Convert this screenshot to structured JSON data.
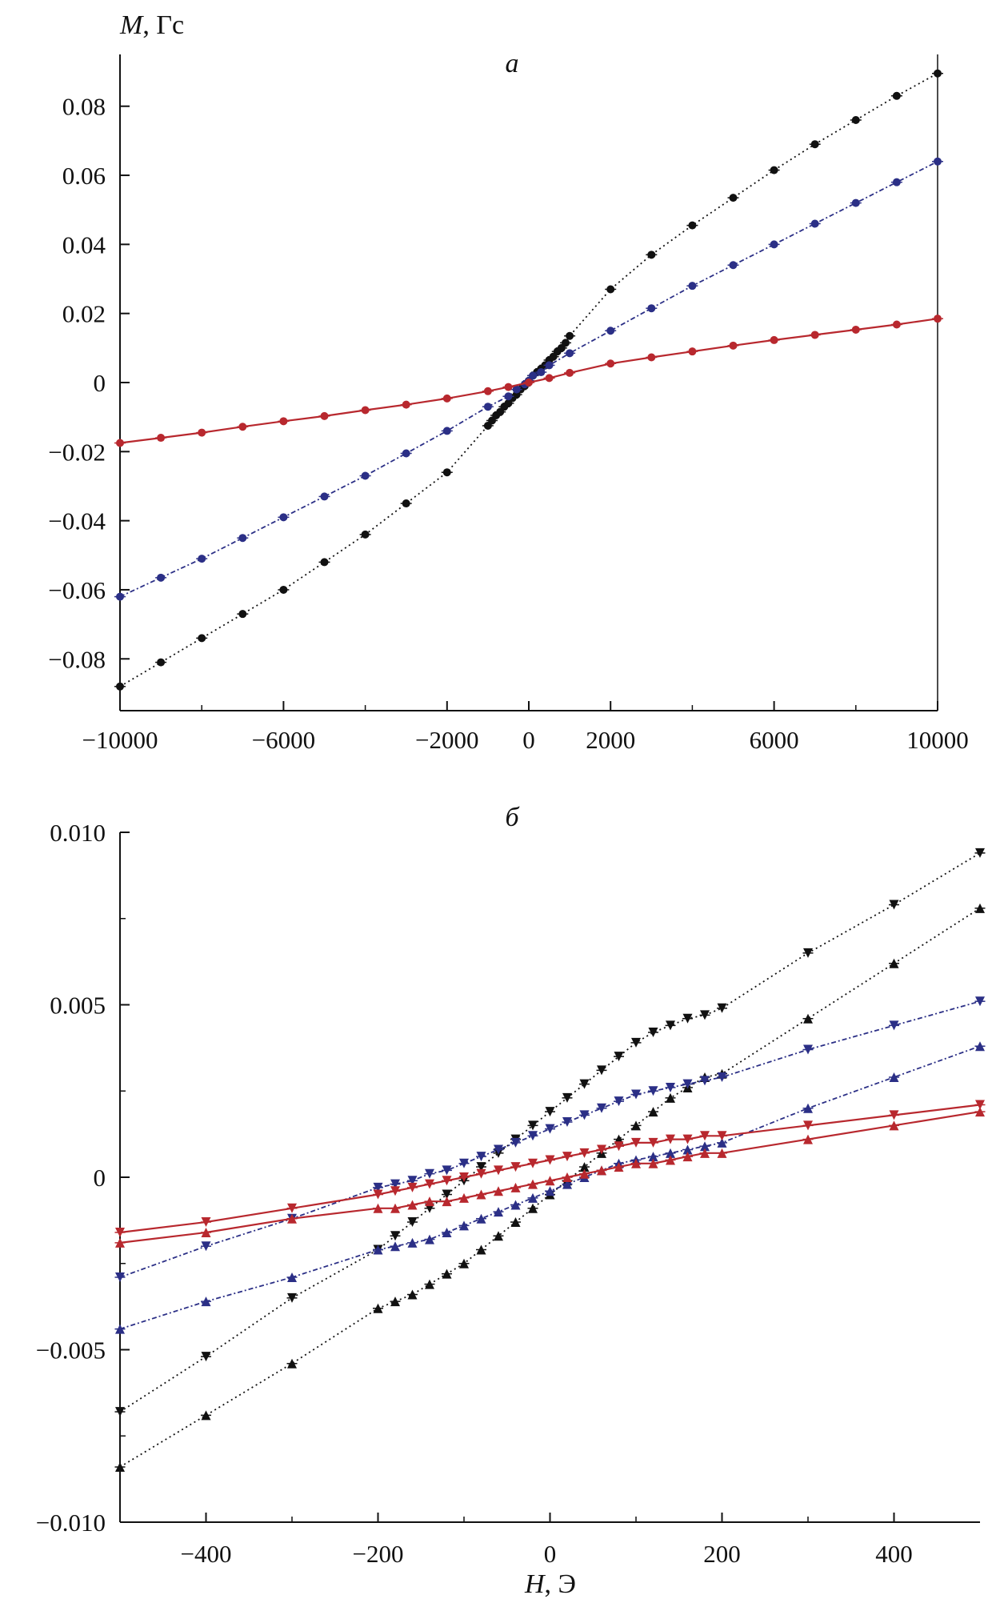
{
  "colors": {
    "black": "#111111",
    "blue": "#2b2f86",
    "red": "#b8282e"
  },
  "chart_data": [
    {
      "type": "scatter",
      "panel_label": "а",
      "ylabel_sym": "M",
      "ylabel_unit": ", Гс",
      "xlim": [
        -10000,
        10000
      ],
      "ylim": [
        -0.095,
        0.095
      ],
      "x_ticks": [
        "−10000",
        "−6000",
        "−2000",
        "0",
        "2000",
        "6000",
        "10000"
      ],
      "x_tick_values": [
        -10000,
        -6000,
        -2000,
        0,
        2000,
        6000,
        10000
      ],
      "y_ticks": [
        "0.08",
        "0.06",
        "0.04",
        "0.02",
        "0",
        "−0.02",
        "−0.04",
        "−0.06",
        "−0.08"
      ],
      "y_tick_values": [
        0.08,
        0.06,
        0.04,
        0.02,
        0,
        -0.02,
        -0.04,
        -0.06,
        -0.08
      ],
      "series": [
        {
          "color": "black",
          "dash": "2,4",
          "x": [
            -10000,
            -9000,
            -8000,
            -7000,
            -6000,
            -5000,
            -4000,
            -3000,
            -2000,
            -1000,
            -900,
            -800,
            -700,
            -600,
            -500,
            -400,
            -300,
            -200,
            -100,
            0,
            100,
            200,
            300,
            400,
            500,
            600,
            700,
            800,
            900,
            1000,
            2000,
            3000,
            4000,
            5000,
            6000,
            7000,
            8000,
            9000,
            10000
          ],
          "y": [
            -0.088,
            -0.081,
            -0.074,
            -0.067,
            -0.06,
            -0.052,
            -0.044,
            -0.035,
            -0.026,
            -0.0125,
            -0.011,
            -0.0095,
            -0.0085,
            -0.007,
            -0.006,
            -0.0045,
            -0.0035,
            -0.002,
            -0.001,
            0.0005,
            0.002,
            0.003,
            0.004,
            0.005,
            0.0065,
            0.0075,
            0.009,
            0.01,
            0.0115,
            0.0135,
            0.027,
            0.037,
            0.0455,
            0.0535,
            0.0615,
            0.069,
            0.076,
            0.083,
            0.0895
          ]
        },
        {
          "color": "blue",
          "dash": "6,3,2,3",
          "x": [
            -10000,
            -9000,
            -8000,
            -7000,
            -6000,
            -5000,
            -4000,
            -3000,
            -2000,
            -1000,
            -500,
            -300,
            -100,
            0,
            100,
            300,
            500,
            1000,
            2000,
            3000,
            4000,
            5000,
            6000,
            7000,
            8000,
            9000,
            10000
          ],
          "y": [
            -0.062,
            -0.0565,
            -0.051,
            -0.045,
            -0.039,
            -0.033,
            -0.027,
            -0.0205,
            -0.014,
            -0.007,
            -0.004,
            -0.002,
            -0.0005,
            0.0005,
            0.002,
            0.003,
            0.005,
            0.0085,
            0.015,
            0.0215,
            0.028,
            0.034,
            0.04,
            0.046,
            0.052,
            0.058,
            0.064
          ]
        },
        {
          "color": "red",
          "dash": "",
          "x": [
            -10000,
            -9000,
            -8000,
            -7000,
            -6000,
            -5000,
            -4000,
            -3000,
            -2000,
            -1000,
            -500,
            0,
            500,
            1000,
            2000,
            3000,
            4000,
            5000,
            6000,
            7000,
            8000,
            9000,
            10000
          ],
          "y": [
            -0.0175,
            -0.016,
            -0.0145,
            -0.0128,
            -0.0112,
            -0.0097,
            -0.008,
            -0.0064,
            -0.0046,
            -0.0025,
            -0.0013,
            0.0,
            0.0013,
            0.0028,
            0.0055,
            0.0073,
            0.009,
            0.0107,
            0.0123,
            0.0138,
            0.0153,
            0.0168,
            0.0185
          ]
        }
      ]
    },
    {
      "type": "scatter",
      "panel_label": "б",
      "xlabel_sym": "H",
      "xlabel_unit": ", Э",
      "xlim": [
        -500,
        500
      ],
      "ylim": [
        -0.01,
        0.01
      ],
      "x_ticks": [
        "−400",
        "−200",
        "0",
        "200",
        "400"
      ],
      "x_tick_values": [
        -400,
        -200,
        0,
        200,
        400
      ],
      "y_ticks": [
        "0.010",
        "0.005",
        "0",
        "−0.005",
        "−0.010"
      ],
      "y_tick_values": [
        0.01,
        0.005,
        0,
        -0.005,
        -0.01
      ],
      "series": [
        {
          "color": "black",
          "dash": "2,4",
          "marker": "down",
          "x": [
            -500,
            -400,
            -300,
            -200,
            -180,
            -160,
            -140,
            -120,
            -100,
            -80,
            -60,
            -40,
            -20,
            0,
            20,
            40,
            60,
            80,
            100,
            120,
            140,
            160,
            180,
            200,
            300,
            400,
            500
          ],
          "y": [
            -0.0068,
            -0.0052,
            -0.0035,
            -0.0021,
            -0.0017,
            -0.0013,
            -0.0009,
            -0.0005,
            -0.0001,
            0.0003,
            0.0007,
            0.0011,
            0.0015,
            0.0019,
            0.0023,
            0.0027,
            0.0031,
            0.0035,
            0.0039,
            0.0042,
            0.0044,
            0.0046,
            0.0047,
            0.0049,
            0.0065,
            0.0079,
            0.0094
          ]
        },
        {
          "color": "black",
          "dash": "2,4",
          "marker": "up",
          "x": [
            -500,
            -400,
            -300,
            -200,
            -180,
            -160,
            -140,
            -120,
            -100,
            -80,
            -60,
            -40,
            -20,
            0,
            20,
            40,
            60,
            80,
            100,
            120,
            140,
            160,
            180,
            200,
            300,
            400,
            500
          ],
          "y": [
            -0.0084,
            -0.0069,
            -0.0054,
            -0.0038,
            -0.0036,
            -0.0034,
            -0.0031,
            -0.0028,
            -0.0025,
            -0.0021,
            -0.0017,
            -0.0013,
            -0.0009,
            -0.0005,
            -0.0001,
            0.0003,
            0.0007,
            0.0011,
            0.0015,
            0.0019,
            0.0023,
            0.0026,
            0.0029,
            0.003,
            0.0046,
            0.0062,
            0.0078
          ]
        },
        {
          "color": "blue",
          "dash": "6,3,2,3",
          "marker": "down",
          "x": [
            -500,
            -400,
            -300,
            -200,
            -180,
            -160,
            -140,
            -120,
            -100,
            -80,
            -60,
            -40,
            -20,
            0,
            20,
            40,
            60,
            80,
            100,
            120,
            140,
            160,
            180,
            200,
            300,
            400,
            500
          ],
          "y": [
            -0.0029,
            -0.002,
            -0.0012,
            -0.0003,
            -0.0002,
            -0.0001,
            0.0001,
            0.0002,
            0.0004,
            0.0006,
            0.0008,
            0.001,
            0.0012,
            0.0014,
            0.0016,
            0.0018,
            0.002,
            0.0022,
            0.0024,
            0.0025,
            0.0026,
            0.0027,
            0.0028,
            0.0029,
            0.0037,
            0.0044,
            0.0051
          ]
        },
        {
          "color": "blue",
          "dash": "6,3,2,3",
          "marker": "up",
          "x": [
            -500,
            -400,
            -300,
            -200,
            -180,
            -160,
            -140,
            -120,
            -100,
            -80,
            -60,
            -40,
            -20,
            0,
            20,
            40,
            60,
            80,
            100,
            120,
            140,
            160,
            180,
            200,
            300,
            400,
            500
          ],
          "y": [
            -0.0044,
            -0.0036,
            -0.0029,
            -0.0021,
            -0.002,
            -0.0019,
            -0.0018,
            -0.0016,
            -0.0014,
            -0.0012,
            -0.001,
            -0.0008,
            -0.0006,
            -0.0004,
            -0.0002,
            0.0,
            0.0002,
            0.0004,
            0.0005,
            0.0006,
            0.0007,
            0.0008,
            0.0009,
            0.001,
            0.002,
            0.0029,
            0.0038
          ]
        },
        {
          "color": "red",
          "dash": "",
          "marker": "down",
          "x": [
            -500,
            -400,
            -300,
            -200,
            -180,
            -160,
            -140,
            -120,
            -100,
            -80,
            -60,
            -40,
            -20,
            0,
            20,
            40,
            60,
            80,
            100,
            120,
            140,
            160,
            180,
            200,
            300,
            400,
            500
          ],
          "y": [
            -0.0016,
            -0.0013,
            -0.0009,
            -0.0005,
            -0.0004,
            -0.0003,
            -0.0002,
            -0.0001,
            0.0,
            0.0001,
            0.0002,
            0.0003,
            0.0004,
            0.0005,
            0.0006,
            0.0007,
            0.0008,
            0.0009,
            0.001,
            0.001,
            0.0011,
            0.0011,
            0.0012,
            0.0012,
            0.0015,
            0.0018,
            0.0021
          ]
        },
        {
          "color": "red",
          "dash": "",
          "marker": "up",
          "x": [
            -500,
            -400,
            -300,
            -200,
            -180,
            -160,
            -140,
            -120,
            -100,
            -80,
            -60,
            -40,
            -20,
            0,
            20,
            40,
            60,
            80,
            100,
            120,
            140,
            160,
            180,
            200,
            300,
            400,
            500
          ],
          "y": [
            -0.0019,
            -0.0016,
            -0.0012,
            -0.0009,
            -0.0009,
            -0.0008,
            -0.0007,
            -0.0007,
            -0.0006,
            -0.0005,
            -0.0004,
            -0.0003,
            -0.0002,
            -0.0001,
            0.0,
            0.0001,
            0.0002,
            0.0003,
            0.0004,
            0.0004,
            0.0005,
            0.0006,
            0.0007,
            0.0007,
            0.0011,
            0.0015,
            0.0019
          ]
        }
      ]
    }
  ]
}
